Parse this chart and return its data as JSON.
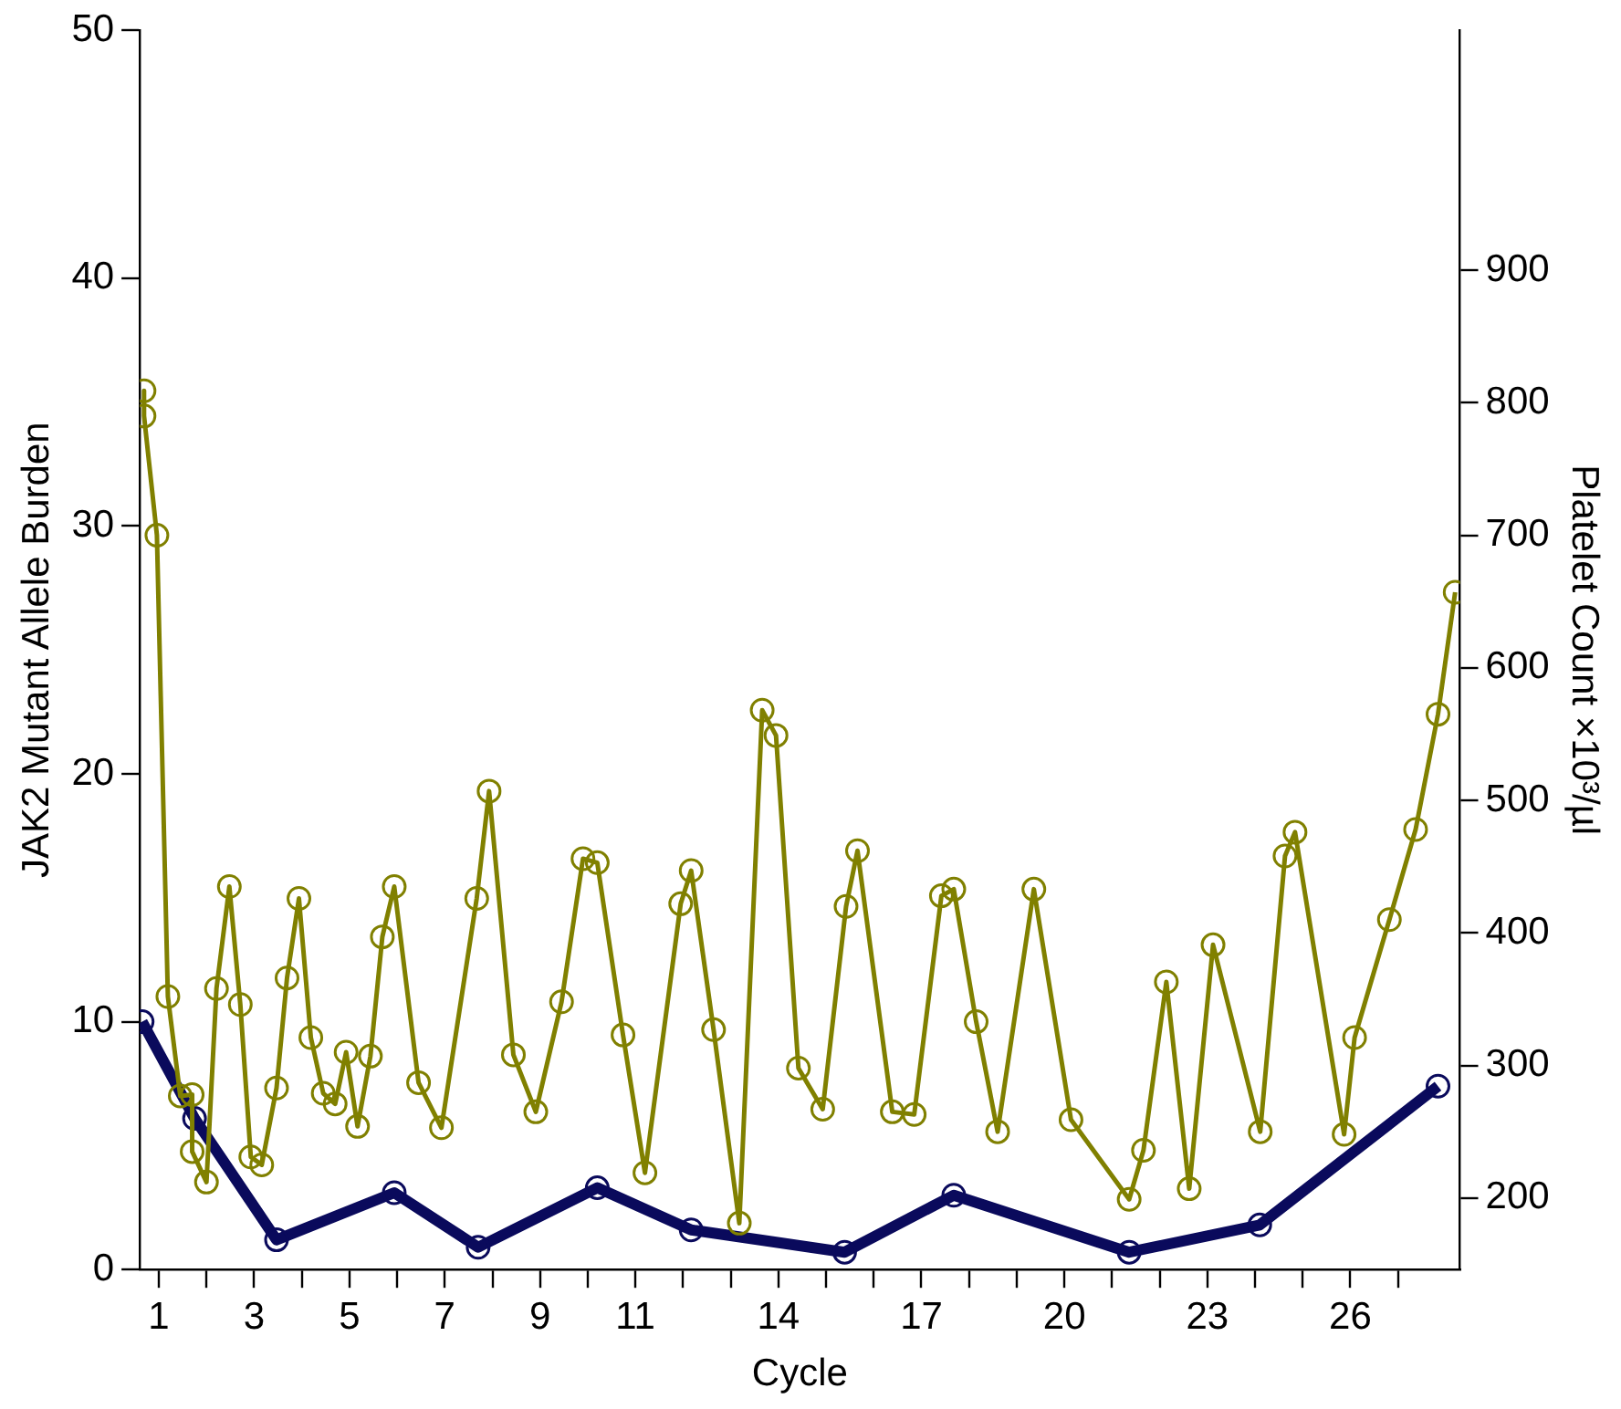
{
  "chart_data": {
    "type": "line",
    "xlabel": "Cycle",
    "ylabel": "JAK2 Mutant Allele Burden",
    "y2label": "Platelet Count ×10³/µl",
    "xlim": [
      0.6,
      28.3
    ],
    "xticks": [
      {
        "value": 1,
        "label": "1"
      },
      {
        "value": 2,
        "label": null
      },
      {
        "value": 3,
        "label": "3"
      },
      {
        "value": 4,
        "label": null
      },
      {
        "value": 5,
        "label": "5"
      },
      {
        "value": 6,
        "label": null
      },
      {
        "value": 7,
        "label": "7"
      },
      {
        "value": 8,
        "label": null
      },
      {
        "value": 9,
        "label": "9"
      },
      {
        "value": 10,
        "label": null
      },
      {
        "value": 11,
        "label": "11"
      },
      {
        "value": 12,
        "label": null
      },
      {
        "value": 13,
        "label": null
      },
      {
        "value": 14,
        "label": "14"
      },
      {
        "value": 15,
        "label": null
      },
      {
        "value": 16,
        "label": null
      },
      {
        "value": 17,
        "label": "17"
      },
      {
        "value": 18,
        "label": null
      },
      {
        "value": 19,
        "label": null
      },
      {
        "value": 20,
        "label": "20"
      },
      {
        "value": 21,
        "label": null
      },
      {
        "value": 22,
        "label": null
      },
      {
        "value": 23,
        "label": "23"
      },
      {
        "value": 24,
        "label": null
      },
      {
        "value": 25,
        "label": null
      },
      {
        "value": 26,
        "label": "26"
      },
      {
        "value": 27,
        "label": null
      }
    ],
    "ylim": [
      0,
      50
    ],
    "yticks": [
      0,
      10,
      20,
      30,
      40,
      50
    ],
    "y2lim": [
      146,
      1081
    ],
    "y2ticks": [
      200,
      300,
      400,
      500,
      600,
      700,
      800,
      900
    ],
    "grid": false,
    "legend": false,
    "marker": "circle",
    "line_style": "solid",
    "series": [
      {
        "color": "#808000",
        "axis": "y2",
        "x": [
          0.69,
          0.69,
          0.96,
          1.19,
          1.45,
          1.7,
          1.7,
          2.0,
          2.21,
          2.48,
          2.71,
          2.93,
          3.16,
          3.47,
          3.69,
          3.94,
          4.19,
          4.45,
          4.7,
          4.93,
          5.17,
          5.44,
          5.69,
          5.94,
          6.45,
          6.93,
          7.67,
          7.93,
          8.44,
          8.91,
          9.45,
          9.9,
          10.2,
          10.74,
          11.2,
          11.95,
          12.17,
          12.64,
          13.18,
          13.66,
          13.95,
          14.42,
          14.93,
          15.42,
          15.66,
          16.39,
          16.85,
          17.42,
          17.68,
          18.15,
          18.6,
          19.36,
          20.14,
          21.36,
          21.66,
          22.14,
          22.62,
          23.12,
          24.11,
          24.63,
          24.84,
          25.87,
          26.09,
          26.82,
          27.37,
          27.84,
          28.2
        ],
        "values": [
          809,
          790,
          700,
          352,
          277,
          278,
          235,
          212,
          358,
          435,
          346,
          231,
          225,
          283,
          366,
          426,
          321,
          279,
          271,
          310,
          254,
          307,
          397,
          435,
          287,
          253,
          426,
          507,
          308,
          265,
          348,
          456,
          453,
          323,
          219,
          422,
          447,
          327,
          181,
          568,
          549,
          298,
          267,
          420,
          462,
          265,
          263,
          428,
          433,
          333,
          250,
          433,
          259,
          199,
          236,
          363,
          207,
          391,
          250,
          458,
          476,
          248,
          321,
          410,
          478,
          565,
          657
        ]
      },
      {
        "color": "#0a0a5c",
        "axis": "y",
        "x": [
          0.65,
          1.75,
          3.47,
          5.94,
          7.7,
          10.2,
          12.17,
          15.39,
          17.68,
          21.36,
          24.1,
          27.84
        ],
        "values": [
          10,
          6.1,
          1.2,
          3.1,
          0.9,
          3.3,
          1.6,
          0.7,
          3.0,
          0.7,
          1.8,
          7.4
        ]
      }
    ]
  }
}
